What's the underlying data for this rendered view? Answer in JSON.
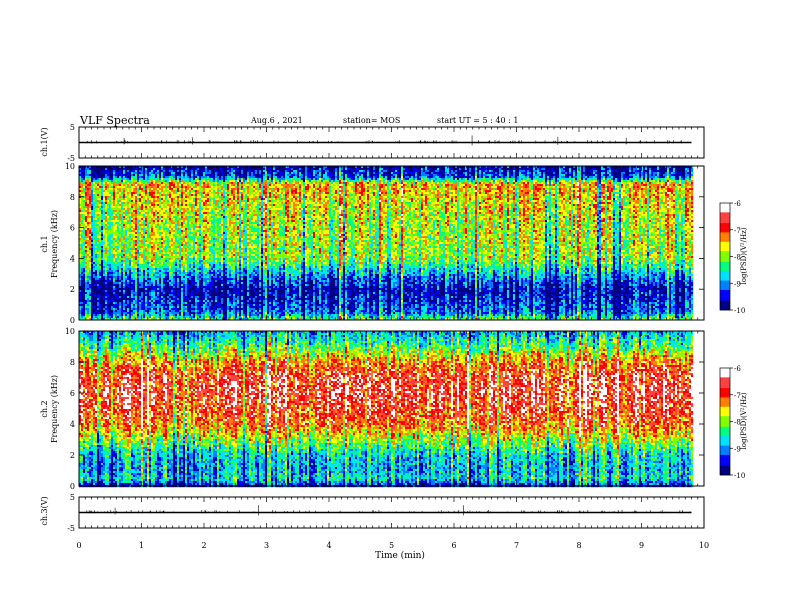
{
  "header": {
    "title": "VLF Spectra",
    "date": "Aug.6  , 2021",
    "station": "station= MOS",
    "start_ut": "start  UT  =   5  : 40 : 1"
  },
  "panels": {
    "ch1_wave": {
      "ylabel": "ch.1(V)",
      "ticks": [
        "5",
        "-5"
      ]
    },
    "ch1_spec": {
      "ylabel_line1": "ch.1",
      "ylabel_line2": "Frequency (kHz)",
      "ticks": [
        "10",
        "8",
        "6",
        "4",
        "2",
        "0"
      ]
    },
    "ch2_spec": {
      "ylabel_line1": "ch.2",
      "ylabel_line2": "Frequency (kHz)",
      "ticks": [
        "10",
        "8",
        "6",
        "4",
        "2",
        "0"
      ]
    },
    "ch3_wave": {
      "ylabel": "ch.3(V)",
      "ticks": [
        "5",
        "-5"
      ]
    }
  },
  "xaxis": {
    "label": "Time  (min)",
    "ticks": [
      "0",
      "1",
      "2",
      "3",
      "4",
      "5",
      "6",
      "7",
      "8",
      "9",
      "10"
    ]
  },
  "colorbar": {
    "label": "log(PSD)(V²/Hz)",
    "ticks": [
      "-6",
      "-7",
      "-8",
      "-9",
      "-10"
    ],
    "colors": [
      "#000080",
      "#0000ff",
      "#0080ff",
      "#00e0ff",
      "#00ff80",
      "#80ff00",
      "#ffff00",
      "#ff8000",
      "#ff0000",
      "#ff4040",
      "#ffffff"
    ]
  },
  "chart_data": [
    {
      "type": "line",
      "name_label": "ch.1(V)",
      "x": [
        0,
        9.8
      ],
      "y": [
        0,
        0
      ],
      "xlim": [
        0,
        10
      ],
      "ylim": [
        -5,
        5
      ]
    },
    {
      "type": "heatmap",
      "name_label": "ch.1",
      "xlim": [
        0,
        10
      ],
      "ylim": [
        0,
        10
      ],
      "data_extent_min": 9.8,
      "zlim": [
        -10,
        -6
      ],
      "band_profile_khz": [
        0,
        0.5,
        1,
        2,
        3,
        4,
        6,
        8,
        8.8,
        9.3,
        10
      ],
      "band_profile_logpsd": [
        -8.2,
        -9.2,
        -9.4,
        -9.7,
        -8.9,
        -8.0,
        -7.9,
        -7.6,
        -7.4,
        -9.3,
        -9.8
      ]
    },
    {
      "type": "heatmap",
      "name_label": "ch.2",
      "xlim": [
        0,
        10
      ],
      "ylim": [
        0,
        10
      ],
      "data_extent_min": 9.8,
      "zlim": [
        -10,
        -6
      ],
      "band_profile_khz": [
        0,
        0.5,
        1,
        2,
        3,
        4,
        5,
        6,
        7,
        8,
        9,
        10
      ],
      "band_profile_logpsd": [
        -9.6,
        -8.6,
        -8.9,
        -8.7,
        -7.9,
        -7.1,
        -6.8,
        -6.6,
        -6.7,
        -7.2,
        -8.2,
        -8.9
      ]
    },
    {
      "type": "line",
      "name_label": "ch.3(V)",
      "x": [
        0,
        9.8
      ],
      "y": [
        0,
        0
      ],
      "xlim": [
        0,
        10
      ],
      "ylim": [
        -5,
        5
      ]
    }
  ]
}
